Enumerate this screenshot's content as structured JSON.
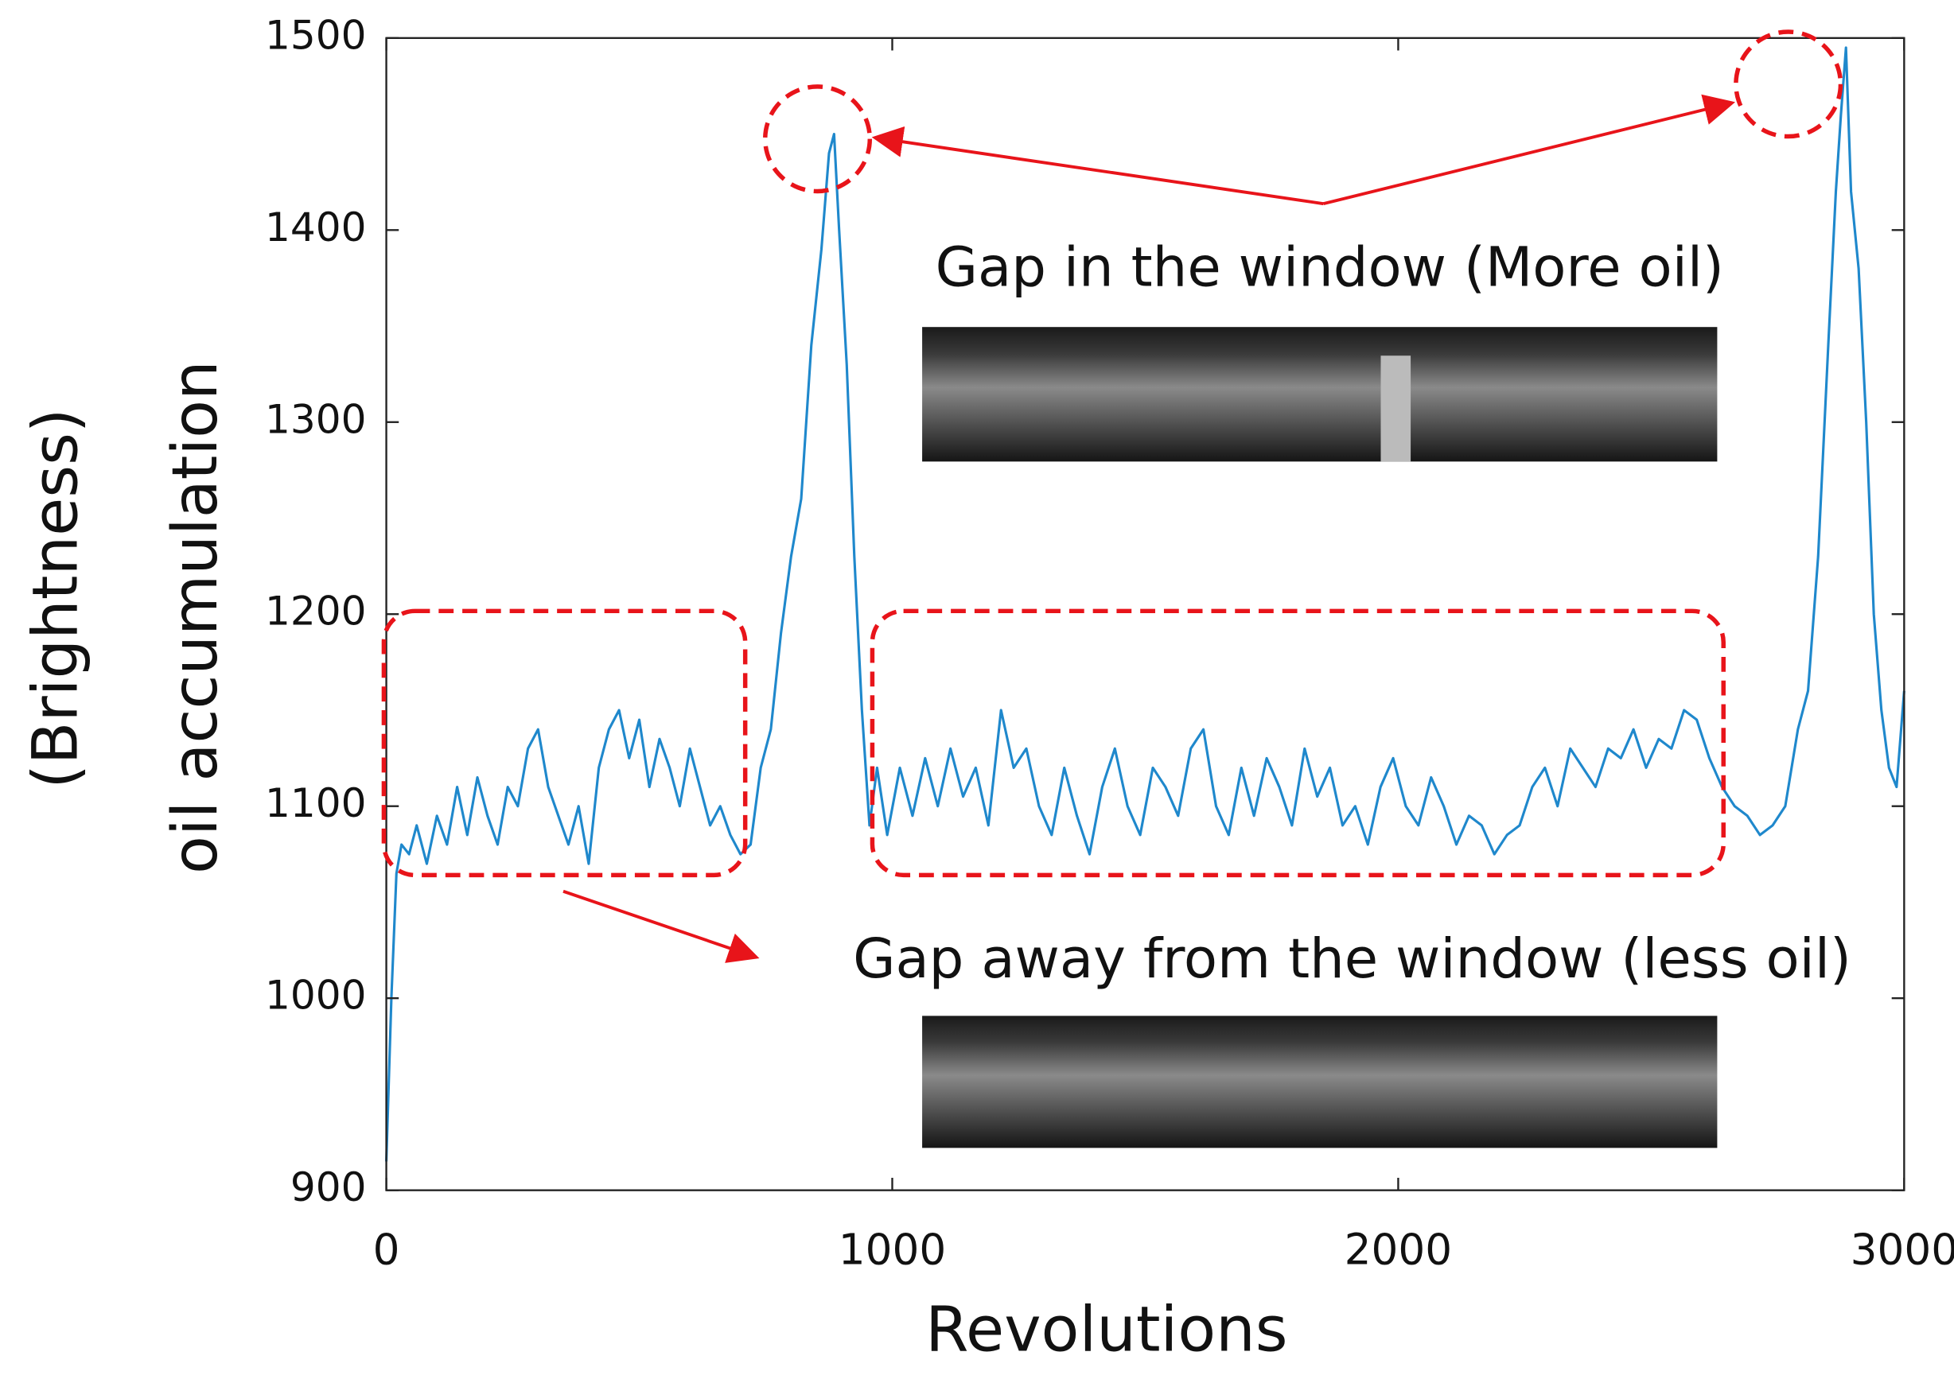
{
  "chart_data": {
    "type": "line",
    "xlabel": "Revolutions",
    "ylabel": [
      "(Brightness)",
      "oil accumulation"
    ],
    "annotations": [
      "Gap in the window (More oil)",
      "Gap away from the window (less oil)"
    ],
    "xlim": [
      0,
      3000
    ],
    "ylim": [
      900,
      1500
    ],
    "xticks": [
      0,
      1000,
      2000,
      3000
    ],
    "yticks": [
      900,
      1000,
      1100,
      1200,
      1300,
      1400,
      1500
    ],
    "series": [
      {
        "color": "#1f88cc",
        "x": [
          0,
          10,
          20,
          30,
          45,
          60,
          80,
          100,
          120,
          140,
          160,
          180,
          200,
          220,
          240,
          260,
          280,
          300,
          320,
          340,
          360,
          380,
          400,
          420,
          440,
          460,
          480,
          500,
          520,
          540,
          560,
          580,
          600,
          620,
          640,
          660,
          680,
          700,
          720,
          740,
          760,
          780,
          800,
          820,
          840,
          860,
          875,
          885,
          895,
          910,
          925,
          940,
          955,
          970,
          990,
          1015,
          1040,
          1065,
          1090,
          1115,
          1140,
          1165,
          1190,
          1215,
          1240,
          1265,
          1290,
          1315,
          1340,
          1365,
          1390,
          1415,
          1440,
          1465,
          1490,
          1515,
          1540,
          1565,
          1590,
          1615,
          1640,
          1665,
          1690,
          1715,
          1740,
          1765,
          1790,
          1815,
          1840,
          1865,
          1890,
          1915,
          1940,
          1965,
          1990,
          2015,
          2040,
          2065,
          2090,
          2115,
          2140,
          2165,
          2190,
          2215,
          2240,
          2265,
          2290,
          2315,
          2340,
          2365,
          2390,
          2415,
          2440,
          2465,
          2490,
          2515,
          2540,
          2565,
          2590,
          2615,
          2640,
          2665,
          2690,
          2715,
          2740,
          2765,
          2790,
          2810,
          2830,
          2850,
          2865,
          2875,
          2885,
          2895,
          2910,
          2925,
          2940,
          2955,
          2970,
          2985,
          3000
        ],
        "values": [
          915,
          1000,
          1065,
          1080,
          1075,
          1090,
          1070,
          1095,
          1080,
          1110,
          1085,
          1115,
          1095,
          1080,
          1110,
          1100,
          1130,
          1140,
          1110,
          1095,
          1080,
          1100,
          1070,
          1120,
          1140,
          1150,
          1125,
          1145,
          1110,
          1135,
          1120,
          1100,
          1130,
          1110,
          1090,
          1100,
          1085,
          1075,
          1080,
          1120,
          1140,
          1190,
          1230,
          1260,
          1340,
          1390,
          1440,
          1450,
          1400,
          1330,
          1230,
          1150,
          1090,
          1120,
          1085,
          1120,
          1095,
          1125,
          1100,
          1130,
          1105,
          1120,
          1090,
          1150,
          1120,
          1130,
          1100,
          1085,
          1120,
          1095,
          1075,
          1110,
          1130,
          1100,
          1085,
          1120,
          1110,
          1095,
          1130,
          1140,
          1100,
          1085,
          1120,
          1095,
          1125,
          1110,
          1090,
          1130,
          1105,
          1120,
          1090,
          1100,
          1080,
          1110,
          1125,
          1100,
          1090,
          1115,
          1100,
          1080,
          1095,
          1090,
          1075,
          1085,
          1090,
          1110,
          1120,
          1100,
          1130,
          1120,
          1110,
          1130,
          1125,
          1140,
          1120,
          1135,
          1130,
          1150,
          1145,
          1125,
          1110,
          1100,
          1095,
          1085,
          1090,
          1100,
          1140,
          1160,
          1230,
          1340,
          1420,
          1460,
          1495,
          1420,
          1380,
          1300,
          1200,
          1150,
          1120,
          1110,
          1160
        ]
      }
    ]
  }
}
